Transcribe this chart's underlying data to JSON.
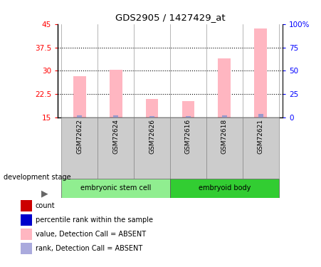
{
  "title": "GDS2905 / 1427429_at",
  "samples": [
    "GSM72622",
    "GSM72624",
    "GSM72626",
    "GSM72616",
    "GSM72618",
    "GSM72621"
  ],
  "pink_bar_tops": [
    28.3,
    30.2,
    21.0,
    20.2,
    34.0,
    43.5
  ],
  "blue_bar_tops": [
    15.7,
    15.6,
    15.5,
    15.5,
    15.7,
    16.1
  ],
  "bar_base": 15.0,
  "ylim_left": [
    15,
    45
  ],
  "ylim_right": [
    0,
    100
  ],
  "yticks_left": [
    15,
    22.5,
    30,
    37.5,
    45
  ],
  "yticks_right": [
    0,
    25,
    50,
    75,
    100
  ],
  "ytick_labels_left": [
    "15",
    "22.5",
    "30",
    "37.5",
    "45"
  ],
  "ytick_labels_right": [
    "0",
    "25",
    "50",
    "75",
    "100%"
  ],
  "pink_color": "#FFB6C1",
  "blue_color": "#9999CC",
  "sample_box_color": "#CCCCCC",
  "group1_color": "#90EE90",
  "group2_color": "#32CD32",
  "group1_label": "embryonic stem cell",
  "group2_label": "embryoid body",
  "group1_count": 3,
  "group2_count": 3,
  "dev_stage_label": "development stage",
  "legend_items": [
    {
      "label": "count",
      "color": "#CC0000"
    },
    {
      "label": "percentile rank within the sample",
      "color": "#0000CC"
    },
    {
      "label": "value, Detection Call = ABSENT",
      "color": "#FFB6C1"
    },
    {
      "label": "rank, Detection Call = ABSENT",
      "color": "#AAAADD"
    }
  ],
  "bar_width": 0.35
}
